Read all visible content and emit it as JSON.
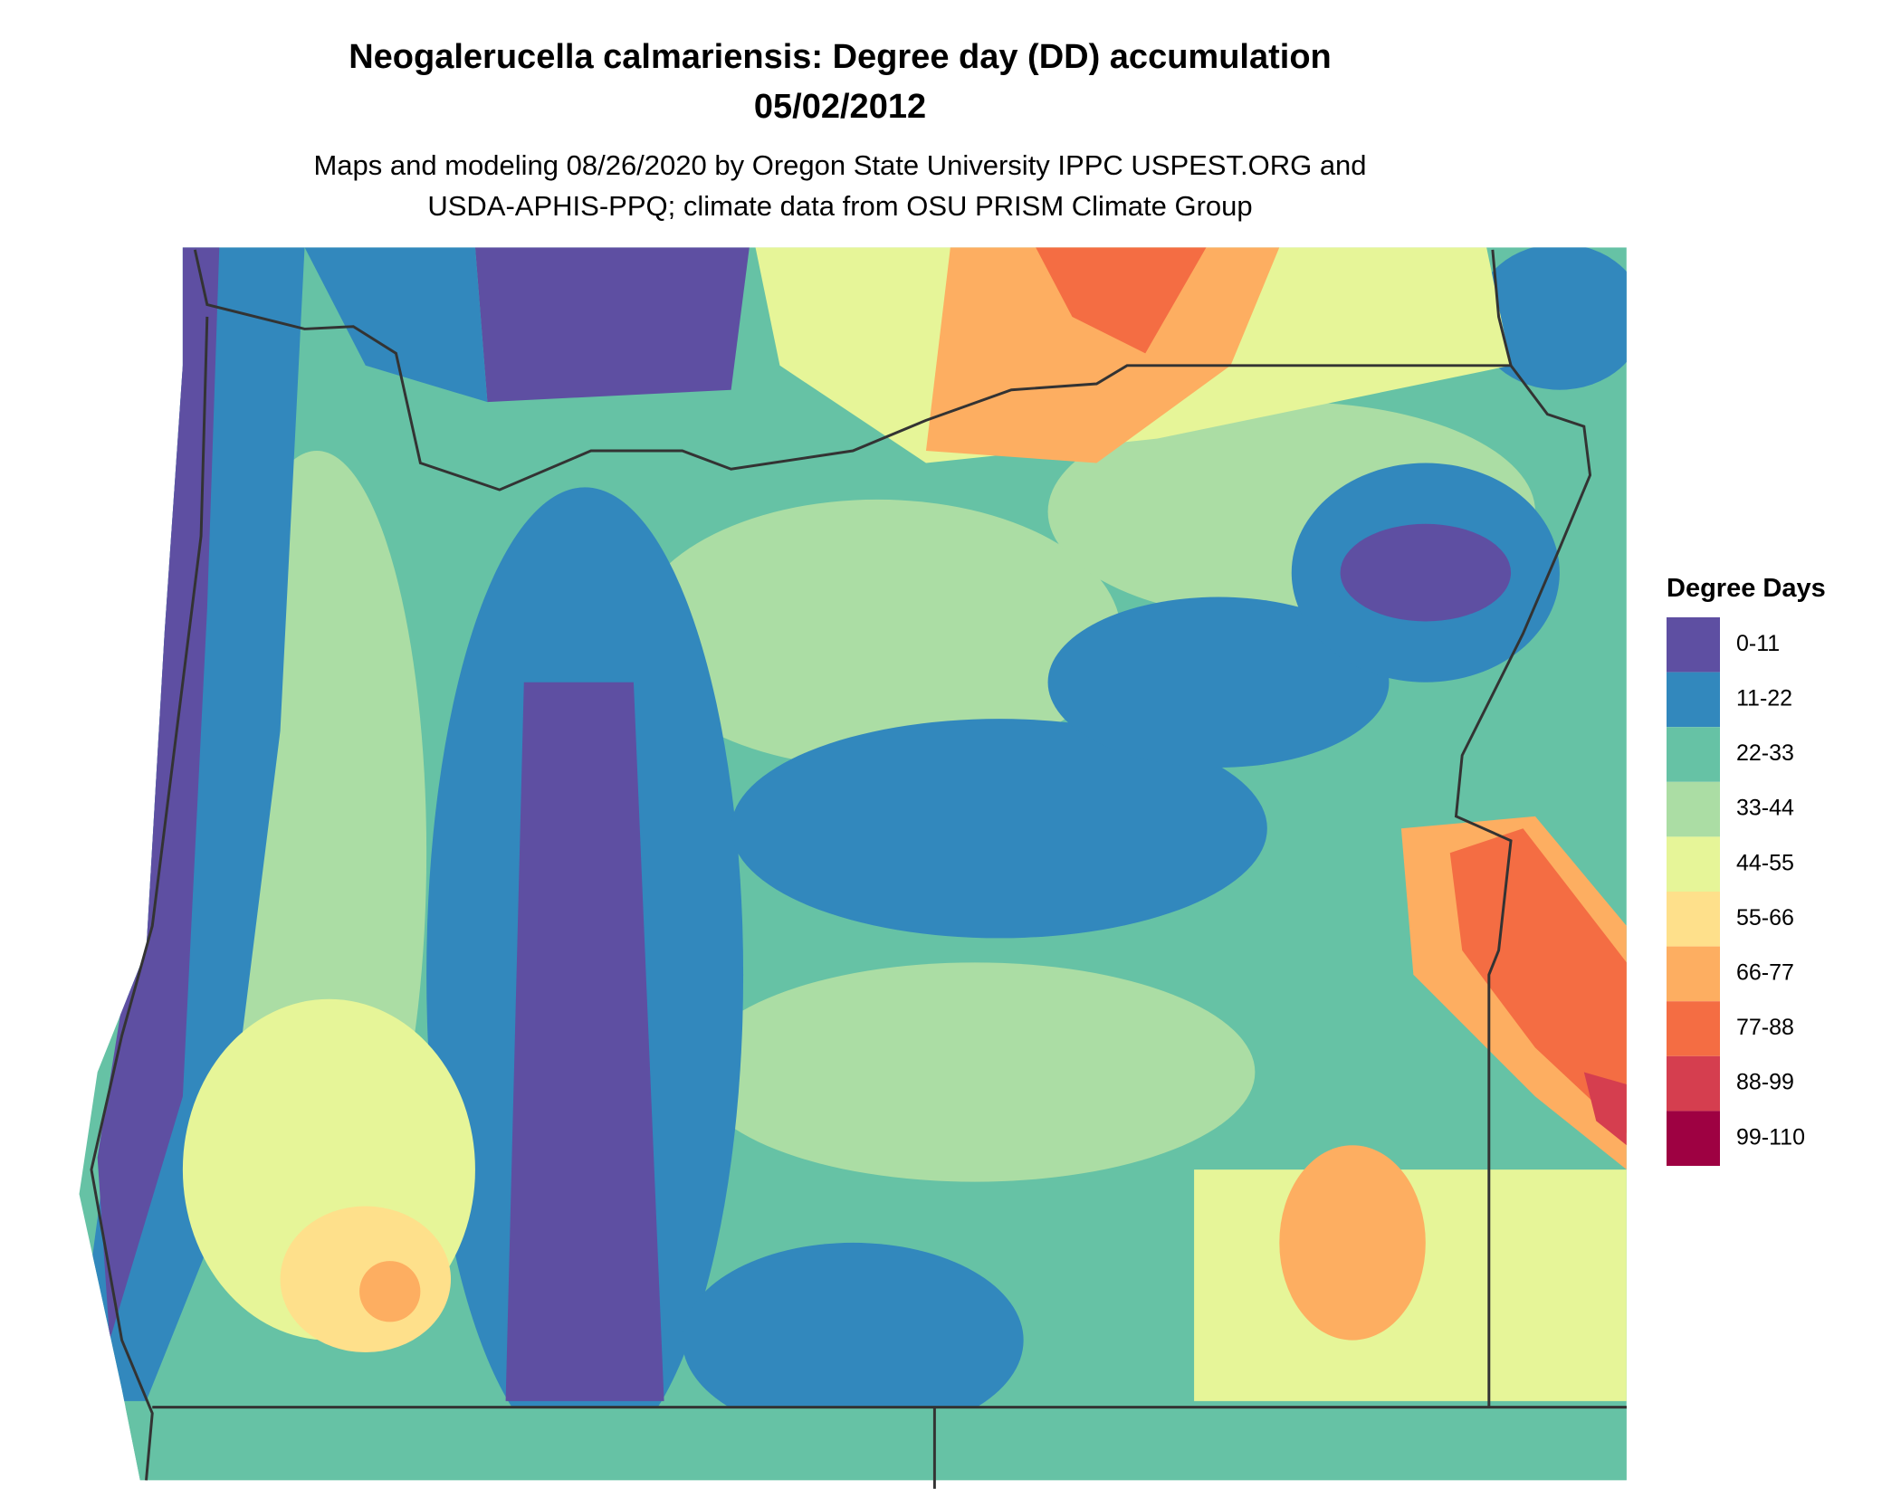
{
  "header": {
    "title": [
      "Neogalerucella calmariensis: Degree day (DD) accumulation",
      "05/02/2012"
    ],
    "subtitle": [
      "Maps and modeling 08/26/2020 by Oregon State University IPPC USPEST.ORG and",
      "USDA-APHIS-PPQ; climate data from OSU PRISM Climate Group"
    ]
  },
  "legend": {
    "title": "Degree Days",
    "items": [
      {
        "label": "0-11",
        "color": "#5e4fa2"
      },
      {
        "label": "11-22",
        "color": "#3288bd"
      },
      {
        "label": "22-33",
        "color": "#66c2a5"
      },
      {
        "label": "33-44",
        "color": "#abdda4"
      },
      {
        "label": "44-55",
        "color": "#e6f598"
      },
      {
        "label": "55-66",
        "color": "#fee08b"
      },
      {
        "label": "66-77",
        "color": "#fdae61"
      },
      {
        "label": "77-88",
        "color": "#f46d43"
      },
      {
        "label": "88-99",
        "color": "#d53e4f"
      },
      {
        "label": "99-110",
        "color": "#9e0142"
      }
    ]
  }
}
